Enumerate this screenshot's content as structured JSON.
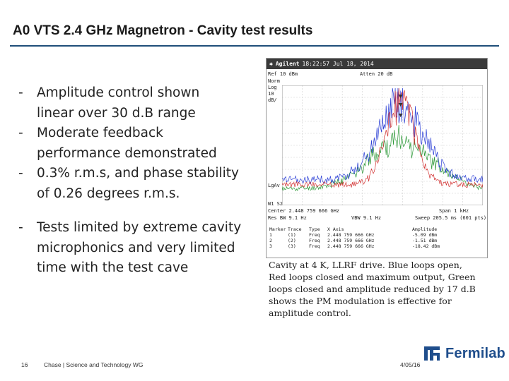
{
  "slide": {
    "title": "A0 VTS 2.4 GHz Magnetron - Cavity test results",
    "bullets": [
      {
        "dash": "-",
        "lines": [
          "Amplitude control shown",
          "linear over 30 d.B range"
        ]
      },
      {
        "dash": "-",
        "lines": [
          "Moderate feedback",
          "performance demonstrated"
        ]
      },
      {
        "dash": "-",
        "lines": [
          "0.3% r.m.s, and phase stability",
          "of 0.26 degrees r.m.s."
        ]
      },
      {
        "dash": "-",
        "lines": [
          "Tests limited by extreme cavity",
          "microphonics and very limited",
          "time with the test cave"
        ]
      }
    ],
    "caption_lines": [
      "Cavity at 4 K, LLRF drive.  Blue loops open,",
      "Red loops closed and maximum output, Green",
      "loops closed and amplitude reduced by 17 d.B",
      "shows the PM modulation is effective for",
      "amplitude control."
    ]
  },
  "analyzer": {
    "brand": "Agilent",
    "timestamp": "18:22:57  Jul 18, 2014",
    "ref": "Ref 10 dBm",
    "atten": "Atten 20 dB",
    "left_labels": [
      "Norm",
      "Log",
      "10",
      "dB/"
    ],
    "lgav": "LgAv",
    "w1s2": "W1  S2",
    "center": "Center 2.448 759 666 GHz",
    "res_bw": "Res BW 9.1 Hz",
    "vbw": "VBW 9.1 Hz",
    "span": "Span 1 kHz",
    "sweep": "Sweep 205.5 ms (601 pts)",
    "table_header": [
      "Marker",
      "Trace",
      "Type",
      "X Axis",
      "Amplitude"
    ],
    "table_rows": [
      [
        "1",
        "(1)",
        "Freq",
        "2.448 759 666 GHz",
        "-5.09 dBm"
      ],
      [
        "2",
        "(2)",
        "Freq",
        "2.448 759 666 GHz",
        "-1.51 dBm"
      ],
      [
        "3",
        "(3)",
        "Freq",
        "2.448 759 666 GHz",
        "-18.42 dBm"
      ]
    ],
    "colors": {
      "blue": "#2b3fd6",
      "red": "#d23030",
      "green": "#2f9a3a"
    }
  },
  "footer": {
    "page_number": "16",
    "presenter": "Chase | Science and Technology WG",
    "date": "4/05/16",
    "logo_text": "Fermilab"
  }
}
